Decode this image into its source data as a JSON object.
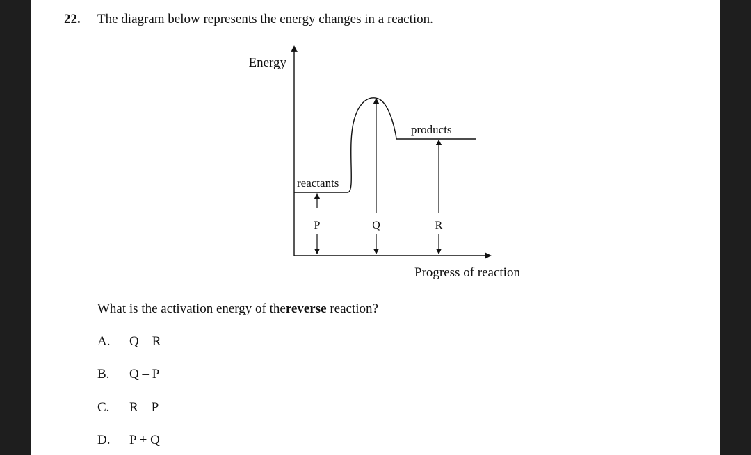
{
  "question": {
    "number": "22.",
    "text": "The diagram below represents the energy changes in a reaction."
  },
  "diagram": {
    "y_axis_label": "Energy",
    "x_axis_label": "Progress of reaction",
    "reactants_label": "reactants",
    "products_label": "products",
    "arrow_p_label": "P",
    "arrow_q_label": "Q",
    "arrow_r_label": "R"
  },
  "prompt": {
    "before": "What is the activation energy of the",
    "bold": "reverse",
    "after": " reaction?"
  },
  "options": [
    {
      "letter": "A.",
      "value": "Q – R"
    },
    {
      "letter": "B.",
      "value": "Q – P"
    },
    {
      "letter": "C.",
      "value": "R – P"
    },
    {
      "letter": "D.",
      "value": "P + Q"
    }
  ]
}
